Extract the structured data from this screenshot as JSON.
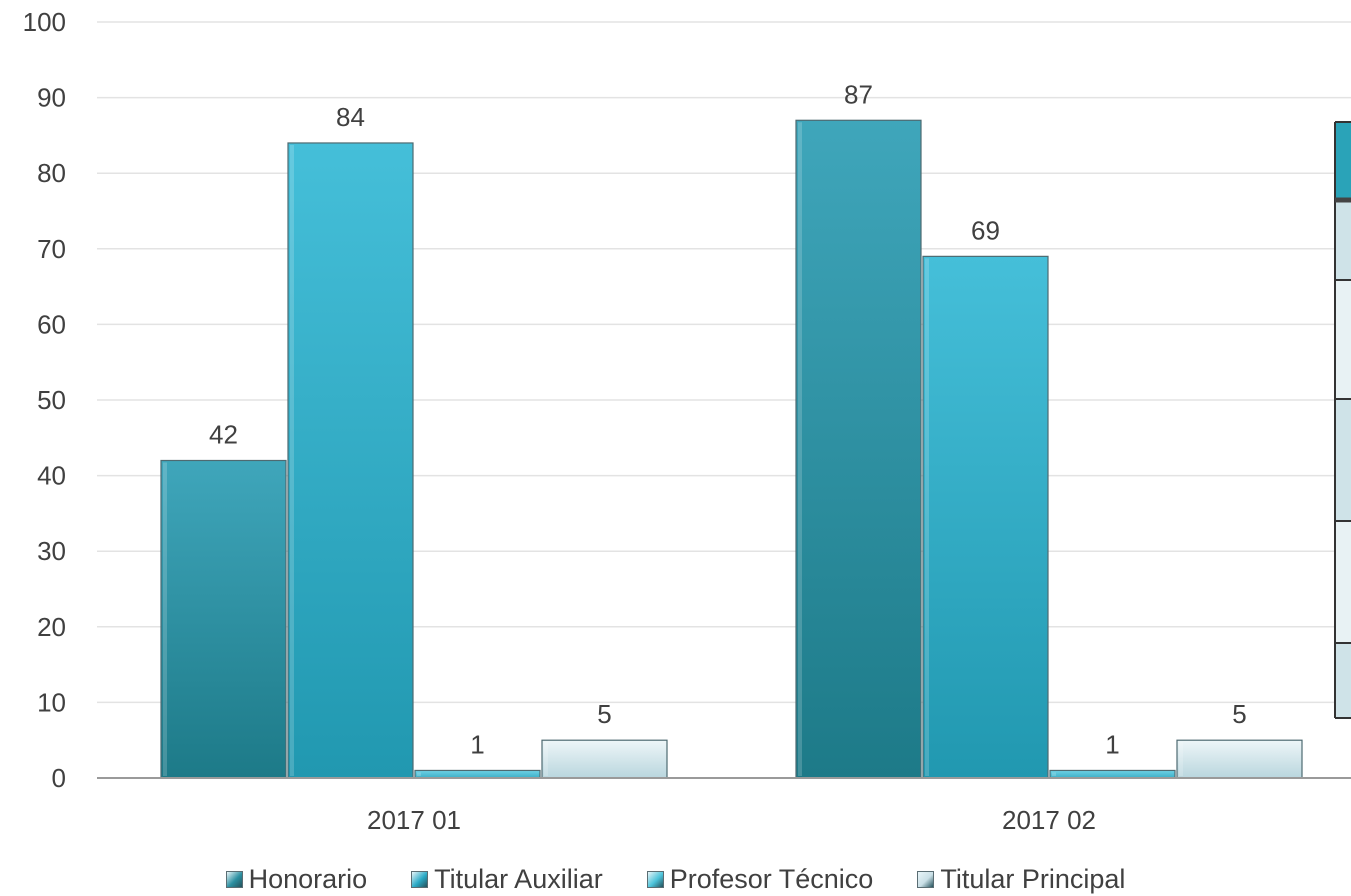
{
  "chart_data": {
    "type": "bar",
    "categories": [
      "2017 01",
      "2017 02"
    ],
    "series": [
      {
        "name": "Honorario",
        "values": [
          42,
          87
        ],
        "color": "#2b8fa0"
      },
      {
        "name": "Titular Auxiliar",
        "values": [
          84,
          69
        ],
        "color": "#2aaac6"
      },
      {
        "name": "Profesor Técnico",
        "values": [
          1,
          1
        ],
        "color": "#4cc3da"
      },
      {
        "name": "Titular Principal",
        "values": [
          5,
          5
        ],
        "color": "#c9dfe6"
      }
    ],
    "ylim": [
      0,
      100
    ],
    "yticks": [
      0,
      10,
      20,
      30,
      40,
      50,
      60,
      70,
      80,
      90,
      100
    ],
    "grid": true,
    "legend_position": "bottom",
    "data_labels": true
  },
  "data_table": {
    "header_color": "#2aa3b8",
    "row_colors": [
      "#cfe3e8",
      "#e8f2f4",
      "#cfe3e8",
      "#e8f2f4",
      "#cfe3e8"
    ]
  }
}
